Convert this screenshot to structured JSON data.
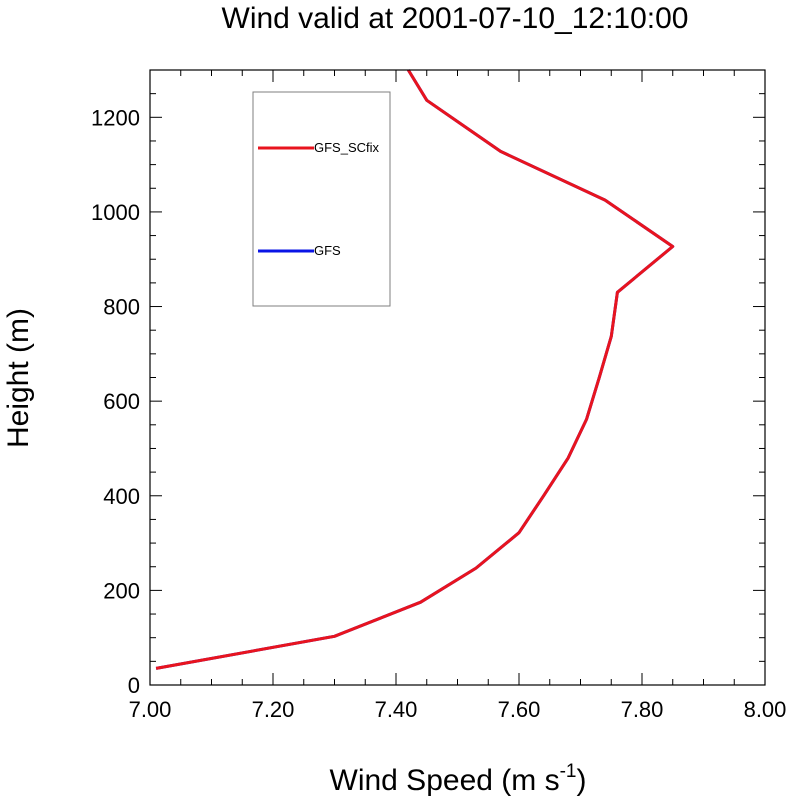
{
  "chart_data": {
    "type": "line",
    "title": "Wind valid at 2001-07-10_12:10:00",
    "xlabel": "Wind Speed (m s",
    "xlabel_superscript": "-1",
    "xlabel_suffix": ")",
    "ylabel": "Height (m)",
    "xlim": [
      7.0,
      8.0
    ],
    "ylim": [
      0,
      1300
    ],
    "x_ticks": [
      "7.00",
      "7.20",
      "7.40",
      "7.60",
      "7.80",
      "8.00"
    ],
    "y_ticks": [
      "0",
      "200",
      "400",
      "600",
      "800",
      "1000",
      "1200"
    ],
    "grid": false,
    "legend_position": "top-left",
    "series": [
      {
        "name": "GFS_SCfix",
        "color": "#e8141e",
        "points": [
          {
            "x": 7.01,
            "y": 35
          },
          {
            "x": 7.3,
            "y": 103
          },
          {
            "x": 7.44,
            "y": 175
          },
          {
            "x": 7.53,
            "y": 247
          },
          {
            "x": 7.6,
            "y": 322
          },
          {
            "x": 7.64,
            "y": 400
          },
          {
            "x": 7.68,
            "y": 480
          },
          {
            "x": 7.71,
            "y": 562
          },
          {
            "x": 7.73,
            "y": 648
          },
          {
            "x": 7.75,
            "y": 737
          },
          {
            "x": 7.76,
            "y": 830
          },
          {
            "x": 7.85,
            "y": 927
          },
          {
            "x": 7.74,
            "y": 1025
          },
          {
            "x": 7.57,
            "y": 1128
          },
          {
            "x": 7.45,
            "y": 1236
          },
          {
            "x": 7.42,
            "y": 1300
          }
        ]
      },
      {
        "name": "GFS",
        "color": "#0a14e6",
        "points": [
          {
            "x": 7.01,
            "y": 35
          },
          {
            "x": 7.3,
            "y": 103
          },
          {
            "x": 7.44,
            "y": 175
          },
          {
            "x": 7.53,
            "y": 247
          },
          {
            "x": 7.6,
            "y": 322
          },
          {
            "x": 7.64,
            "y": 400
          },
          {
            "x": 7.68,
            "y": 480
          },
          {
            "x": 7.71,
            "y": 562
          },
          {
            "x": 7.73,
            "y": 648
          },
          {
            "x": 7.75,
            "y": 737
          },
          {
            "x": 7.76,
            "y": 830
          },
          {
            "x": 7.85,
            "y": 927
          },
          {
            "x": 7.74,
            "y": 1025
          },
          {
            "x": 7.57,
            "y": 1128
          },
          {
            "x": 7.45,
            "y": 1236
          },
          {
            "x": 7.42,
            "y": 1300
          }
        ]
      }
    ]
  }
}
